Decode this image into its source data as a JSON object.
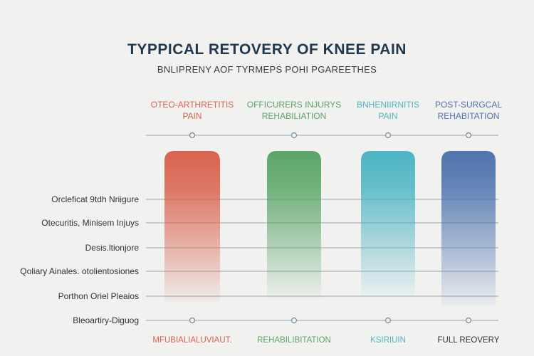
{
  "chart_data": {
    "type": "bar",
    "title": "TYPPICAL RETOVERY OF KNEE PAIN",
    "subtitle": "BNLIPRENY AOF TYRMEPS POHI PGAREETHES",
    "categories": [
      {
        "label_line1": "OTEO-ARTHRETITIS",
        "label_line2": "PAIN",
        "bottom_label": "MFUBIALIALUVIAUT.",
        "color": "#d9624e"
      },
      {
        "label_line1": "OFFICURERS INJURYS",
        "label_line2": "REHABILIATION",
        "bottom_label": "REHABILIBITATION",
        "color": "#5aa567"
      },
      {
        "label_line1": "BNHENIIRNITIS",
        "label_line2": "PAIN",
        "bottom_label": "KSIRIUIN",
        "color": "#4db5c4"
      },
      {
        "label_line1": "POST-SURGCAL",
        "label_line2": "REHABITATION",
        "bottom_label": "FULL REOVERY",
        "color": "#4f73ad"
      }
    ],
    "row_labels": [
      "Orcleficat 9tdh Nriigure",
      "Otecuritis, Minisem Injuys",
      "Desis.ltionjore",
      "Qoliary Ainales. otolientosiones",
      "Porthon Oriel Pleaios",
      "Bleoartiry-Diguog"
    ],
    "values": [
      0.78,
      0.76,
      0.75,
      0.8
    ],
    "grid": true,
    "legend": "none"
  }
}
